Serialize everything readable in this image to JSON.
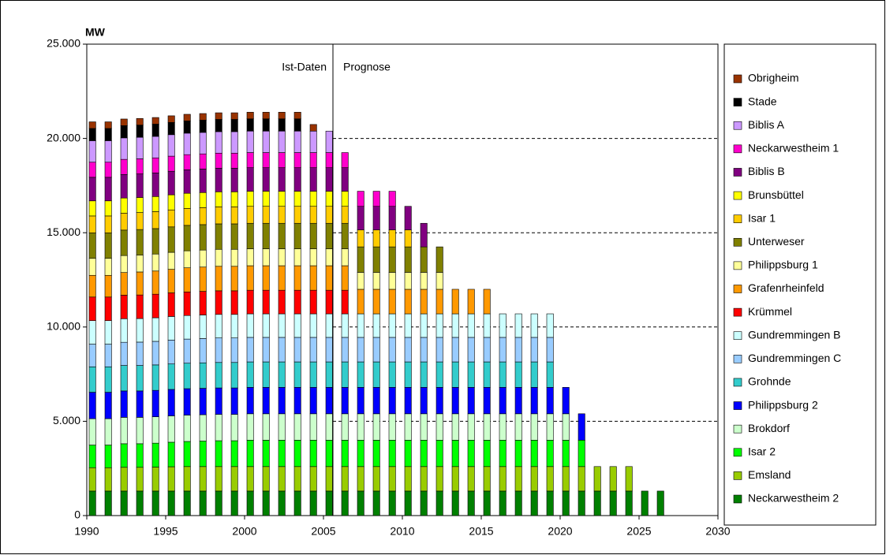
{
  "chart_data": {
    "type": "bar",
    "stacked": true,
    "y_label": "MW",
    "annotations": [
      "Ist-Daten",
      "Prognose"
    ],
    "divider": 2005,
    "x": [
      1990,
      1991,
      1992,
      1993,
      1994,
      1995,
      1996,
      1997,
      1998,
      1999,
      2000,
      2001,
      2002,
      2003,
      2004,
      2005,
      2006,
      2007,
      2008,
      2009,
      2010,
      2011,
      2012,
      2013,
      2014,
      2015,
      2016,
      2017,
      2018,
      2019,
      2020,
      2021,
      2022,
      2023,
      2024,
      2025,
      2026
    ],
    "xlim": [
      1990,
      2030
    ],
    "xticks": [
      1990,
      1995,
      2000,
      2005,
      2010,
      2015,
      2020,
      2025,
      2030
    ],
    "ylim": [
      0,
      25000
    ],
    "yticks": [
      0,
      {
        "value": 5000,
        "label": "5.000"
      },
      {
        "value": 10000,
        "label": "10.000"
      },
      {
        "value": 15000,
        "label": "15.000"
      },
      {
        "value": 20000,
        "label": "20.000"
      },
      {
        "value": 25000,
        "label": "25.000"
      }
    ],
    "grid": true,
    "grid_style": "dashed",
    "legend": "right",
    "series": [
      {
        "name": "Neckarwestheim 2",
        "color": "#008000",
        "values": [
          1300,
          1300,
          1300,
          1300,
          1300,
          1300,
          1300,
          1300,
          1300,
          1300,
          1300,
          1300,
          1300,
          1300,
          1300,
          1300,
          1300,
          1300,
          1300,
          1300,
          1300,
          1300,
          1300,
          1300,
          1300,
          1300,
          1300,
          1300,
          1300,
          1300,
          1300,
          1300,
          1300,
          1300,
          1300,
          1300,
          1300
        ]
      },
      {
        "name": "Emsland",
        "color": "#99CC00",
        "values": [
          1240,
          1240,
          1260,
          1260,
          1270,
          1290,
          1300,
          1300,
          1300,
          1300,
          1300,
          1300,
          1300,
          1300,
          1300,
          1300,
          1300,
          1300,
          1300,
          1300,
          1300,
          1300,
          1300,
          1300,
          1300,
          1300,
          1300,
          1300,
          1300,
          1300,
          1300,
          1300,
          1300,
          1300,
          1300,
          null,
          null
        ]
      },
      {
        "name": "Isar 2",
        "color": "#00FF00",
        "values": [
          1200,
          1200,
          1250,
          1250,
          1270,
          1300,
          1330,
          1350,
          1370,
          1370,
          1400,
          1400,
          1400,
          1400,
          1400,
          1400,
          1400,
          1400,
          1400,
          1400,
          1400,
          1400,
          1400,
          1400,
          1400,
          1400,
          1400,
          1400,
          1400,
          1400,
          1400,
          1400,
          null,
          null,
          null,
          null,
          null
        ]
      },
      {
        "name": "Brokdorf",
        "color": "#CCFFCC",
        "values": [
          1400,
          1400,
          1400,
          1400,
          1400,
          1400,
          1400,
          1400,
          1400,
          1400,
          1400,
          1400,
          1400,
          1400,
          1400,
          1400,
          1400,
          1400,
          1400,
          1400,
          1400,
          1400,
          1400,
          1400,
          1400,
          1400,
          1400,
          1400,
          1400,
          1400,
          1400,
          null,
          null,
          null,
          null,
          null,
          null
        ]
      },
      {
        "name": "Philippsburg 2",
        "color": "#0000FF",
        "values": [
          1400,
          1400,
          1400,
          1400,
          1400,
          1400,
          1400,
          1400,
          1400,
          1400,
          1400,
          1400,
          1400,
          1400,
          1400,
          1400,
          1400,
          1400,
          1400,
          1400,
          1400,
          1400,
          1400,
          1400,
          1400,
          1400,
          1400,
          1400,
          1400,
          1400,
          1400,
          1400,
          null,
          null,
          null,
          null,
          null
        ]
      },
      {
        "name": "Grohnde",
        "color": "#33CCCC",
        "values": [
          1350,
          1350,
          1350,
          1350,
          1350,
          1350,
          1350,
          1350,
          1350,
          1350,
          1350,
          1350,
          1350,
          1350,
          1350,
          1350,
          1350,
          1350,
          1350,
          1350,
          1350,
          1350,
          1350,
          1350,
          1350,
          1350,
          1350,
          1350,
          1350,
          1350,
          null,
          null,
          null,
          null,
          null,
          null,
          null
        ]
      },
      {
        "name": "Gundremmingen C",
        "color": "#99CCFF",
        "values": [
          1200,
          1200,
          1230,
          1240,
          1250,
          1270,
          1280,
          1290,
          1300,
          1300,
          1300,
          1300,
          1300,
          1300,
          1300,
          1300,
          1300,
          1300,
          1300,
          1300,
          1300,
          1300,
          1300,
          1300,
          1300,
          1300,
          1300,
          1300,
          1300,
          1300,
          null,
          null,
          null,
          null,
          null,
          null,
          null
        ]
      },
      {
        "name": "Gundremmingen B",
        "color": "#CCFFFF",
        "values": [
          1250,
          1250,
          1250,
          1250,
          1250,
          1250,
          1250,
          1250,
          1250,
          1250,
          1250,
          1250,
          1250,
          1250,
          1250,
          1250,
          1250,
          1250,
          1250,
          1250,
          1250,
          1250,
          1250,
          1250,
          1250,
          1250,
          1250,
          1250,
          1250,
          1250,
          null,
          null,
          null,
          null,
          null,
          null,
          null
        ]
      },
      {
        "name": "Krümmel",
        "color": "#FF0000",
        "values": [
          1250,
          1250,
          1250,
          1250,
          1250,
          1250,
          1250,
          1250,
          1250,
          1250,
          1250,
          1250,
          1250,
          1250,
          1250,
          1250,
          1250,
          null,
          null,
          null,
          null,
          null,
          null,
          null,
          null,
          null,
          null,
          null,
          null,
          null,
          null,
          null,
          null,
          null,
          null,
          null,
          null
        ]
      },
      {
        "name": "Grafenrheinfeld",
        "color": "#FF9900",
        "values": [
          1150,
          1150,
          1200,
          1220,
          1230,
          1250,
          1280,
          1290,
          1300,
          1300,
          1300,
          1300,
          1300,
          1300,
          1300,
          1300,
          1300,
          1300,
          1300,
          1300,
          1300,
          1300,
          1300,
          1300,
          1300,
          1300,
          null,
          null,
          null,
          null,
          null,
          null,
          null,
          null,
          null,
          null,
          null
        ]
      },
      {
        "name": "Philippsburg 1",
        "color": "#FFFF99",
        "values": [
          900,
          900,
          900,
          900,
          900,
          900,
          900,
          900,
          900,
          900,
          900,
          900,
          900,
          900,
          900,
          900,
          900,
          900,
          900,
          900,
          900,
          900,
          900,
          null,
          null,
          null,
          null,
          null,
          null,
          null,
          null,
          null,
          null,
          null,
          null,
          null,
          null
        ]
      },
      {
        "name": "Unterweser",
        "color": "#808000",
        "values": [
          1350,
          1350,
          1350,
          1350,
          1350,
          1350,
          1350,
          1350,
          1350,
          1350,
          1350,
          1350,
          1350,
          1350,
          1350,
          1350,
          1350,
          1350,
          1350,
          1350,
          1350,
          1350,
          1350,
          null,
          null,
          null,
          null,
          null,
          null,
          null,
          null,
          null,
          null,
          null,
          null,
          null,
          null
        ]
      },
      {
        "name": "Isar 1",
        "color": "#FFCC00",
        "values": [
          900,
          900,
          900,
          900,
          900,
          900,
          900,
          900,
          900,
          900,
          900,
          900,
          900,
          900,
          900,
          900,
          900,
          900,
          900,
          900,
          900,
          null,
          null,
          null,
          null,
          null,
          null,
          null,
          null,
          null,
          null,
          null,
          null,
          null,
          null,
          null,
          null
        ]
      },
      {
        "name": "Brunsbüttel",
        "color": "#FFFF00",
        "values": [
          800,
          800,
          800,
          800,
          800,
          800,
          800,
          800,
          800,
          800,
          800,
          800,
          800,
          800,
          800,
          800,
          800,
          null,
          null,
          null,
          null,
          null,
          null,
          null,
          null,
          null,
          null,
          null,
          null,
          null,
          null,
          null,
          null,
          null,
          null,
          null,
          null
        ]
      },
      {
        "name": "Biblis B",
        "color": "#800080",
        "values": [
          1250,
          1250,
          1250,
          1250,
          1250,
          1250,
          1250,
          1250,
          1250,
          1250,
          1250,
          1250,
          1250,
          1250,
          1250,
          1250,
          1250,
          1250,
          1250,
          1250,
          1250,
          1250,
          null,
          null,
          null,
          null,
          null,
          null,
          null,
          null,
          null,
          null,
          null,
          null,
          null,
          null,
          null
        ]
      },
      {
        "name": "Neckarwestheim 1",
        "color": "#FF00CC",
        "values": [
          800,
          800,
          800,
          800,
          800,
          800,
          800,
          800,
          800,
          800,
          800,
          800,
          800,
          800,
          800,
          800,
          800,
          800,
          800,
          800,
          null,
          null,
          null,
          null,
          null,
          null,
          null,
          null,
          null,
          null,
          null,
          null,
          null,
          null,
          null,
          null,
          null
        ]
      },
      {
        "name": "Biblis A",
        "color": "#CC99FF",
        "values": [
          1140,
          1140,
          1140,
          1140,
          1140,
          1140,
          1140,
          1140,
          1140,
          1140,
          1140,
          1140,
          1140,
          1140,
          1140,
          1140,
          null,
          null,
          null,
          null,
          null,
          null,
          null,
          null,
          null,
          null,
          null,
          null,
          null,
          null,
          null,
          null,
          null,
          null,
          null,
          null,
          null
        ]
      },
      {
        "name": "Stade",
        "color": "#000000",
        "values": [
          650,
          650,
          650,
          650,
          650,
          650,
          650,
          650,
          650,
          650,
          650,
          650,
          650,
          650,
          null,
          null,
          null,
          null,
          null,
          null,
          null,
          null,
          null,
          null,
          null,
          null,
          null,
          null,
          null,
          null,
          null,
          null,
          null,
          null,
          null,
          null,
          null
        ]
      },
      {
        "name": "Obrigheim",
        "color": "#993300",
        "values": [
          350,
          350,
          350,
          350,
          350,
          350,
          350,
          350,
          350,
          350,
          350,
          350,
          350,
          350,
          350,
          null,
          null,
          null,
          null,
          null,
          null,
          null,
          null,
          null,
          null,
          null,
          null,
          null,
          null,
          null,
          null,
          null,
          null,
          null,
          null,
          null,
          null
        ]
      }
    ]
  }
}
